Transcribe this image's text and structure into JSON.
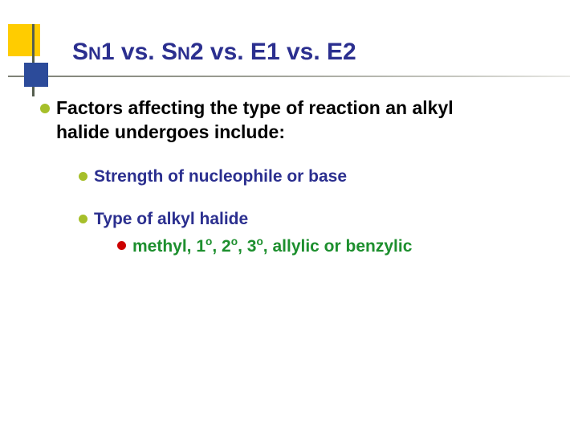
{
  "colors": {
    "deco_yellow": "#ffcc00",
    "deco_blue": "#2c4b9a",
    "vline": "#555e4f",
    "title": "#2b2f8f",
    "text_main": "#000000",
    "text_blue": "#2b2f8f",
    "text_green": "#1d8f2e",
    "bullet_green": "#a6bf2a",
    "bullet_red": "#cc0000",
    "background": "#ffffff"
  },
  "fonts": {
    "family": "Comic Sans MS",
    "title_size": 30,
    "main_size": 23,
    "sub_size": 21,
    "weight": "bold"
  },
  "title": {
    "seg1": "S",
    "sub1": "N",
    "seg2": "1 vs. S",
    "sub2": "N",
    "seg3": "2 vs. E1 vs. E2"
  },
  "main": {
    "line1": "Factors affecting the type of reaction an alkyl",
    "line2": "halide undergoes include:"
  },
  "sub1": {
    "text": "Strength of nucleophile or base"
  },
  "sub2": {
    "text": "Type of alkyl halide"
  },
  "sub3": {
    "seg1": "methyl, 1",
    "sup1": "o",
    "seg2": ", 2",
    "sup2": "o",
    "seg3": ", 3",
    "sup3": "o",
    "seg4": ", allylic or benzylic"
  }
}
